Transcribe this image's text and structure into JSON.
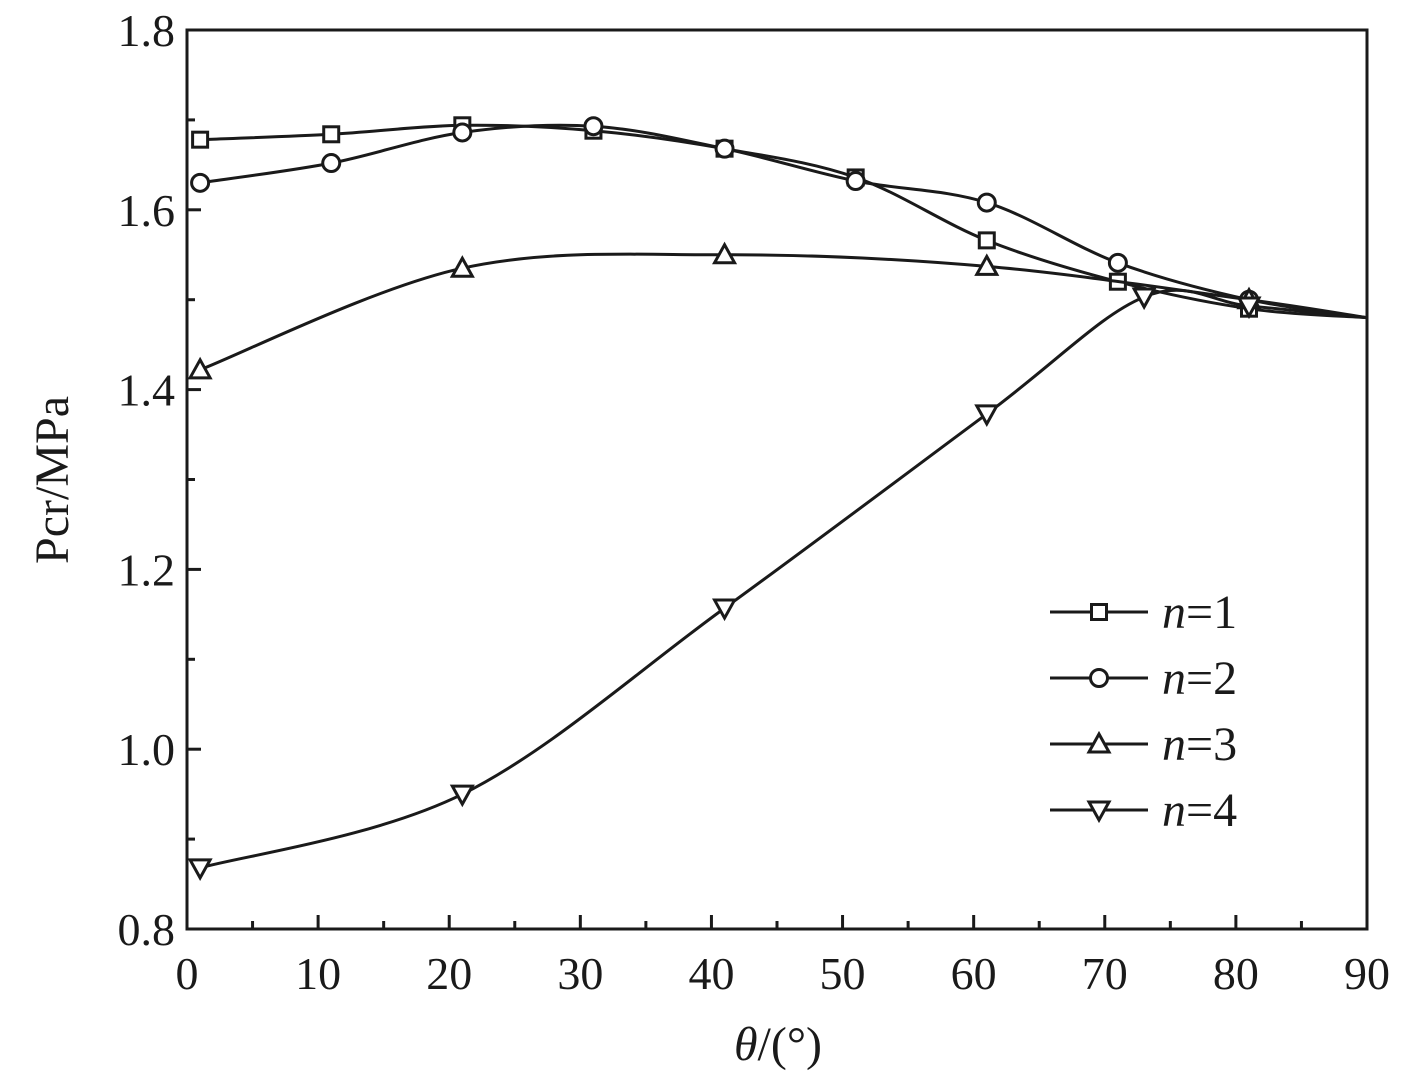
{
  "chart_data": {
    "type": "line",
    "xlabel_var": "θ",
    "xlabel_unit": "/(°)",
    "ylabel": "Pcr/MPa",
    "xlim": [
      0,
      90
    ],
    "ylim": [
      0.8,
      1.8
    ],
    "x_ticks": [
      0,
      10,
      20,
      30,
      40,
      50,
      60,
      70,
      80,
      90
    ],
    "x_tick_labels": [
      "0",
      "10",
      "20",
      "30",
      "40",
      "50",
      "60",
      "70",
      "80",
      "90"
    ],
    "y_ticks": [
      0.8,
      1.0,
      1.2,
      1.4,
      1.6,
      1.8
    ],
    "y_tick_labels": [
      "0.8",
      "1.0",
      "1.2",
      "1.4",
      "1.6",
      "1.8"
    ],
    "grid": false,
    "legend_position": "lower-right",
    "series": [
      {
        "name": "n=1",
        "legend_var": "n",
        "legend_value": "=1",
        "marker": "square",
        "x": [
          1,
          11,
          21,
          31,
          41,
          51,
          61,
          71,
          81,
          90
        ],
        "y": [
          1.678,
          1.684,
          1.694,
          1.688,
          1.668,
          1.636,
          1.566,
          1.52,
          1.49,
          1.48
        ]
      },
      {
        "name": "n=2",
        "legend_var": "n",
        "legend_value": "=2",
        "marker": "circle",
        "x": [
          1,
          11,
          21,
          31,
          41,
          51,
          61,
          71,
          81,
          90
        ],
        "y": [
          1.63,
          1.652,
          1.686,
          1.693,
          1.668,
          1.632,
          1.608,
          1.541,
          1.5,
          1.48
        ]
      },
      {
        "name": "n=3",
        "legend_var": "n",
        "legend_value": "=3",
        "marker": "triangle-up",
        "x": [
          1,
          21,
          41,
          61,
          81,
          90
        ],
        "y": [
          1.422,
          1.535,
          1.55,
          1.537,
          1.5,
          1.48
        ]
      },
      {
        "name": "n=4",
        "legend_var": "n",
        "legend_value": "=4",
        "marker": "triangle-down",
        "x": [
          1,
          21,
          41,
          61,
          73,
          81,
          90
        ],
        "y": [
          0.868,
          0.95,
          1.157,
          1.373,
          1.503,
          1.493,
          1.48
        ]
      }
    ]
  }
}
